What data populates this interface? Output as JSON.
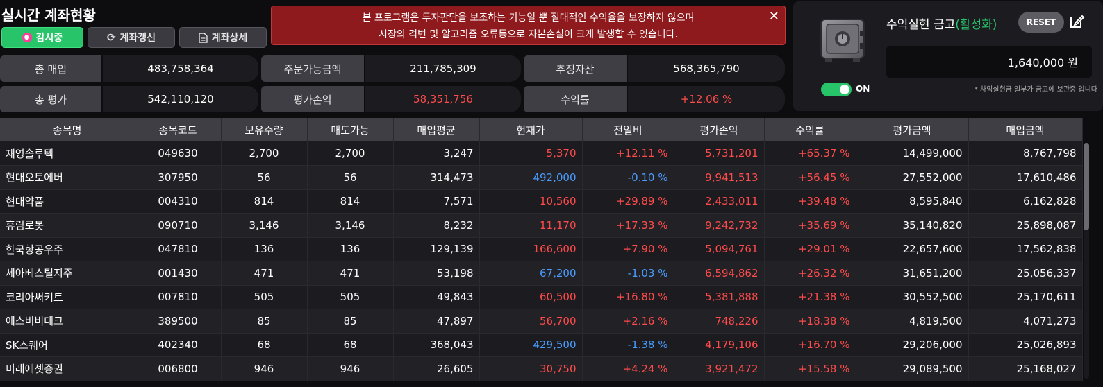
{
  "header": {
    "title": "실시간 계좌현황",
    "buttons": {
      "watch": "감시중",
      "refresh": "계좌갱신",
      "detail": "계좌상세"
    }
  },
  "warning": {
    "line1": "본 프로그램은 투자판단을 보조하는 기능일 뿐 절대적인 수익율을 보장하지 않으며",
    "line2": "시장의 격변 및 알고리즘 오류등으로 자본손실이 크게 발생할 수 있습니다.",
    "close": "✕"
  },
  "summary": {
    "total_purchase": {
      "label": "총 매입",
      "value": "483,758,364"
    },
    "orderable": {
      "label": "주문가능금액",
      "value": "211,785,309"
    },
    "estimated_assets": {
      "label": "추정자산",
      "value": "568,365,790"
    },
    "total_eval": {
      "label": "총 평가",
      "value": "542,110,120"
    },
    "eval_pnl": {
      "label": "평가손익",
      "value": "58,351,756"
    },
    "return_rate": {
      "label": "수익률",
      "value": "+12.06 %"
    }
  },
  "vault": {
    "title": "수익실현 금고",
    "status": "(활성화)",
    "reset_label": "RESET",
    "amount": "1,640,000 원",
    "toggle_label": "ON",
    "note": "* 차익실현금 일부가 금고에 보관중 입니다"
  },
  "table": {
    "columns": [
      "종목명",
      "종목코드",
      "보유수량",
      "매도가능",
      "매입평균",
      "현재가",
      "전일비",
      "평가손익",
      "수익률",
      "평가금액",
      "매입금액"
    ],
    "rows": [
      {
        "name": "재영솔루텍",
        "code": "049630",
        "qty": "2,700",
        "sellable": "2,700",
        "avg": "3,247",
        "price": "5,370",
        "change": "+12.11 %",
        "pnl": "5,731,201",
        "rate": "+65.37 %",
        "eval": "14,499,000",
        "purchase": "8,767,798",
        "dir": "up"
      },
      {
        "name": "현대오토에버",
        "code": "307950",
        "qty": "56",
        "sellable": "56",
        "avg": "314,473",
        "price": "492,000",
        "change": "-0.10 %",
        "pnl": "9,941,513",
        "rate": "+56.45 %",
        "eval": "27,552,000",
        "purchase": "17,610,486",
        "dir": "down"
      },
      {
        "name": "현대약품",
        "code": "004310",
        "qty": "814",
        "sellable": "814",
        "avg": "7,571",
        "price": "10,560",
        "change": "+29.89 %",
        "pnl": "2,433,011",
        "rate": "+39.48 %",
        "eval": "8,595,840",
        "purchase": "6,162,828",
        "dir": "up"
      },
      {
        "name": "휴림로봇",
        "code": "090710",
        "qty": "3,146",
        "sellable": "3,146",
        "avg": "8,232",
        "price": "11,170",
        "change": "+17.33 %",
        "pnl": "9,242,732",
        "rate": "+35.69 %",
        "eval": "35,140,820",
        "purchase": "25,898,087",
        "dir": "up"
      },
      {
        "name": "한국항공우주",
        "code": "047810",
        "qty": "136",
        "sellable": "136",
        "avg": "129,139",
        "price": "166,600",
        "change": "+7.90 %",
        "pnl": "5,094,761",
        "rate": "+29.01 %",
        "eval": "22,657,600",
        "purchase": "17,562,838",
        "dir": "up"
      },
      {
        "name": "세아베스틸지주",
        "code": "001430",
        "qty": "471",
        "sellable": "471",
        "avg": "53,198",
        "price": "67,200",
        "change": "-1.03 %",
        "pnl": "6,594,862",
        "rate": "+26.32 %",
        "eval": "31,651,200",
        "purchase": "25,056,337",
        "dir": "down"
      },
      {
        "name": "코리아써키트",
        "code": "007810",
        "qty": "505",
        "sellable": "505",
        "avg": "49,843",
        "price": "60,500",
        "change": "+16.80 %",
        "pnl": "5,381,888",
        "rate": "+21.38 %",
        "eval": "30,552,500",
        "purchase": "25,170,611",
        "dir": "up"
      },
      {
        "name": "에스비비테크",
        "code": "389500",
        "qty": "85",
        "sellable": "85",
        "avg": "47,897",
        "price": "56,700",
        "change": "+2.16 %",
        "pnl": "748,226",
        "rate": "+18.38 %",
        "eval": "4,819,500",
        "purchase": "4,071,273",
        "dir": "up"
      },
      {
        "name": "SK스퀘어",
        "code": "402340",
        "qty": "68",
        "sellable": "68",
        "avg": "368,043",
        "price": "429,500",
        "change": "-1.38 %",
        "pnl": "4,179,106",
        "rate": "+16.70 %",
        "eval": "29,206,000",
        "purchase": "25,026,893",
        "dir": "down"
      },
      {
        "name": "미래에셋증권",
        "code": "006800",
        "qty": "946",
        "sellable": "946",
        "avg": "26,605",
        "price": "30,750",
        "change": "+4.24 %",
        "pnl": "3,921,472",
        "rate": "+15.58 %",
        "eval": "29,089,500",
        "purchase": "25,168,027",
        "dir": "up"
      }
    ]
  },
  "colors": {
    "up": "#ff4b4b",
    "down": "#4a9cff",
    "accent": "#27c46a",
    "warning_bg": "#8e1a1d"
  }
}
